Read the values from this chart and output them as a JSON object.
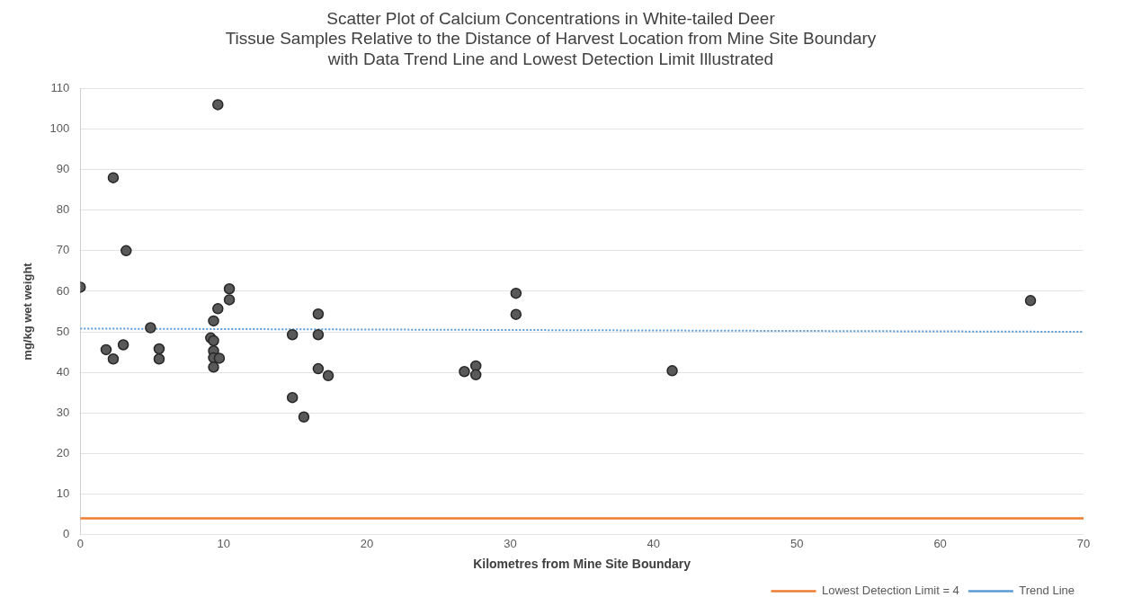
{
  "chart_data": {
    "type": "scatter",
    "title": "Scatter Plot of Calcium Concentrations in White-tailed Deer\nTissue Samples Relative to the Distance of Harvest Location from Mine Site Boundary\nwith Data Trend Line and Lowest Detection Limit Illustrated",
    "xlabel": "Kilometres from Mine Site Boundary",
    "ylabel": "mg/kg wet weight",
    "xlim": [
      0,
      70
    ],
    "xticks": [
      0,
      10,
      20,
      30,
      40,
      50,
      60,
      70
    ],
    "ylim": [
      0,
      110
    ],
    "yticks": [
      0,
      10,
      20,
      30,
      40,
      50,
      60,
      70,
      80,
      90,
      100,
      110
    ],
    "grid": "y",
    "legend": "bottom right",
    "marker": "circle",
    "series": [
      {
        "color": "#595959",
        "x": [
          0,
          9.6,
          2.3,
          3.2,
          4.9,
          1.8,
          2.3,
          3.0,
          5.5,
          5.5,
          10.4,
          10.4,
          9.6,
          9.3,
          9.1,
          9.3,
          9.3,
          9.3,
          9.7,
          9.3,
          30.4,
          30.4,
          16.6,
          16.6,
          14.8,
          16.6,
          17.3,
          14.8,
          15.6,
          26.8,
          27.6,
          27.6,
          41.3,
          66.3
        ],
        "values": [
          61,
          106,
          88,
          70,
          51,
          45.6,
          43.3,
          46.8,
          45.8,
          43.3,
          60.6,
          57.9,
          55.7,
          52.7,
          48.5,
          47.8,
          45.3,
          43.6,
          43.5,
          41.3,
          59.5,
          54.3,
          54.4,
          49.3,
          49.3,
          40.9,
          39.2,
          33.8,
          29.0,
          40.2,
          41.6,
          39.4,
          40.4,
          57.7
        ]
      },
      {
        "type": "line",
        "name": "Trend Line",
        "color": "#5b9bd5",
        "line_style": "dotted",
        "marker": "none",
        "x": [
          0,
          70
        ],
        "values": [
          50.8,
          50.0
        ]
      }
    ],
    "ref_lines": [
      {
        "axis": "y",
        "value": 4,
        "label": "Lowest Detection Limit = 4",
        "color": "#ed7d31",
        "line_style": "solid"
      }
    ]
  }
}
